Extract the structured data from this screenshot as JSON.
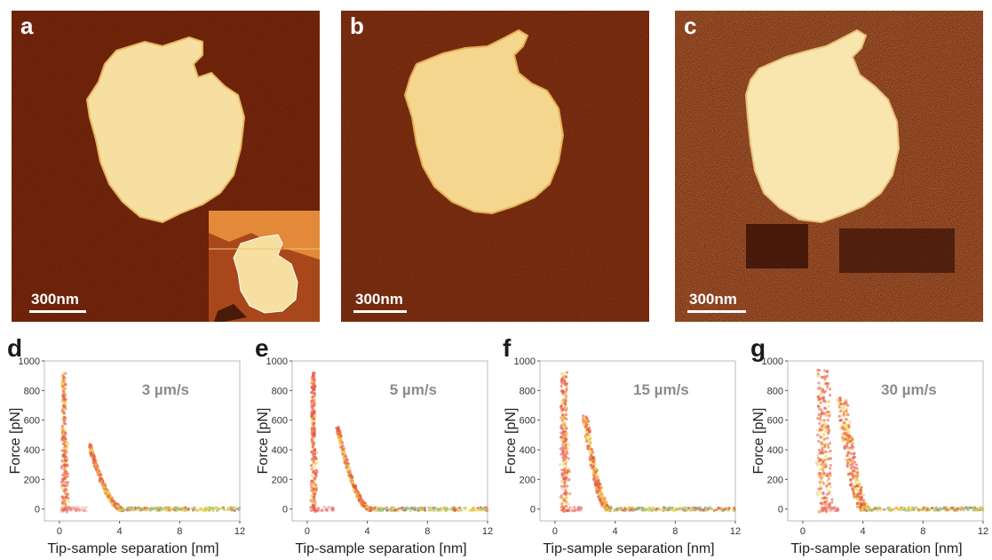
{
  "images": [
    {
      "label": "a",
      "scale_bar": "300nm",
      "has_inset": true
    },
    {
      "label": "b",
      "scale_bar": "300nm",
      "has_inset": false
    },
    {
      "label": "c",
      "scale_bar": "300nm",
      "has_inset": false
    }
  ],
  "colors": {
    "afm_background": "#5a1604",
    "flake": "#f6dfa0",
    "curve_red": "#e8544a",
    "curve_yellow": "#f2d04a",
    "curve_green": "#8cc88a"
  },
  "chart_data": [
    {
      "type": "scatter",
      "panel": "d",
      "speed_label": "3 µm/s",
      "xlabel": "Tip-sample separation [nm]",
      "ylabel": "Force [pN]",
      "xlim": [
        -1,
        12
      ],
      "ylim": [
        -80,
        1000
      ],
      "x_ticks": [
        "0",
        "4",
        "8",
        "12"
      ],
      "y_ticks": [
        "0",
        "200",
        "400",
        "600",
        "800",
        "1000"
      ],
      "features": {
        "indent_peak_x": 0.3,
        "indent_peak_force": 920,
        "jump_x": 2.0,
        "jump_force": 430,
        "baseline_start_x": 4.2
      }
    },
    {
      "type": "scatter",
      "panel": "e",
      "speed_label": "5 µm/s",
      "xlabel": "Tip-sample separation [nm]",
      "ylabel": "Force [pN]",
      "xlim": [
        -1,
        12
      ],
      "ylim": [
        -80,
        1000
      ],
      "x_ticks": [
        "0",
        "4",
        "8",
        "12"
      ],
      "y_ticks": [
        "0",
        "200",
        "400",
        "600",
        "800",
        "1000"
      ],
      "features": {
        "indent_peak_x": 0.4,
        "indent_peak_force": 920,
        "jump_x": 2.0,
        "jump_force": 560,
        "baseline_start_x": 4.2
      }
    },
    {
      "type": "scatter",
      "panel": "f",
      "speed_label": "15 µm/s",
      "xlabel": "Tip-sample separation [nm]",
      "ylabel": "Force [pN]",
      "xlim": [
        -1,
        12
      ],
      "ylim": [
        -80,
        1000
      ],
      "x_ticks": [
        "0",
        "4",
        "8",
        "12"
      ],
      "y_ticks": [
        "0",
        "200",
        "400",
        "600",
        "800",
        "1000"
      ],
      "features": {
        "indent_peak_x": 0.6,
        "indent_peak_force": 930,
        "jump_x": 2.0,
        "jump_force": 620,
        "baseline_start_x": 3.6
      }
    },
    {
      "type": "scatter",
      "panel": "g",
      "speed_label": "30 µm/s",
      "xlabel": "Tip-sample separation [nm]",
      "ylabel": "Force [pN]",
      "xlim": [
        -1,
        12
      ],
      "ylim": [
        -80,
        1000
      ],
      "x_ticks": [
        "0",
        "4",
        "8",
        "12"
      ],
      "y_ticks": [
        "0",
        "200",
        "400",
        "600",
        "800",
        "1000"
      ],
      "features": {
        "indent_peak_x": 1.4,
        "indent_peak_force": 950,
        "jump_x": 2.6,
        "jump_force": 750,
        "baseline_start_x": 4.2
      }
    }
  ]
}
